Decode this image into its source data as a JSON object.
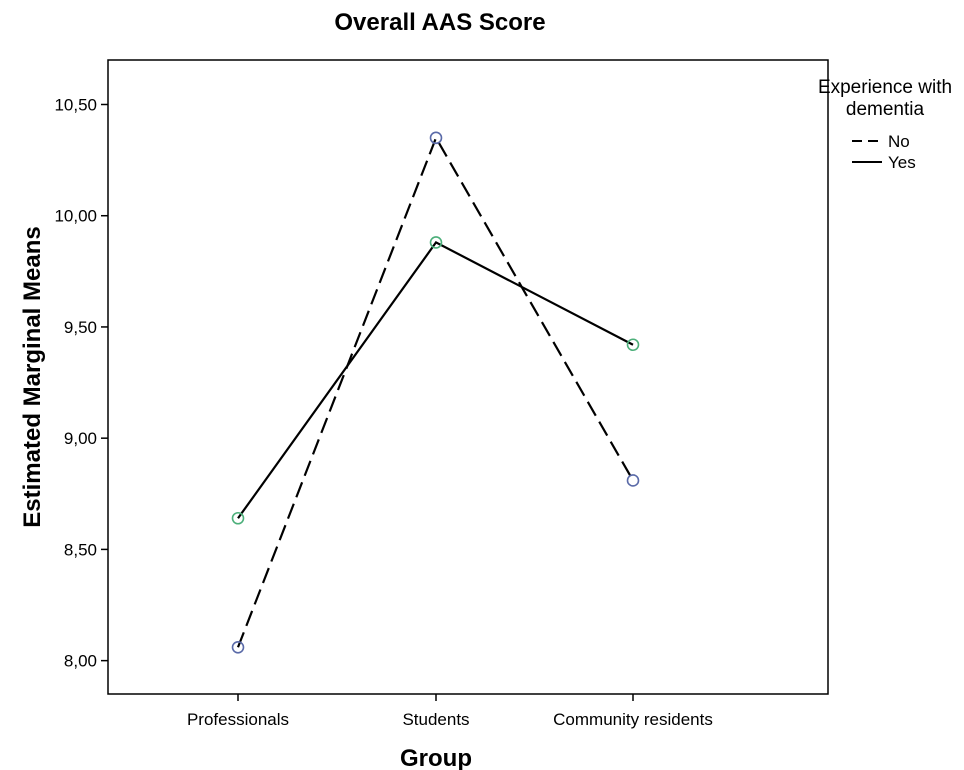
{
  "chart_data": {
    "type": "line",
    "title": "Overall AAS Score",
    "xlabel": "Group",
    "ylabel": "Estimated Marginal Means",
    "categories": [
      "Professionals",
      "Students",
      "Community residents"
    ],
    "ylim": [
      7.85,
      10.7
    ],
    "yticks": [
      8.0,
      8.5,
      9.0,
      9.5,
      10.0,
      10.5
    ],
    "ytick_labels": [
      "8,00",
      "8,50",
      "9,00",
      "9,50",
      "10,00",
      "10,50"
    ],
    "grid": false,
    "legend": {
      "title_lines": [
        "Experience with",
        "dementia"
      ],
      "placement": "top-right outside"
    },
    "series": [
      {
        "name": "No",
        "values": [
          8.06,
          10.35,
          8.81
        ],
        "line_style": "dashed",
        "marker_color": "#5a6aa8"
      },
      {
        "name": "Yes",
        "values": [
          8.64,
          9.88,
          9.42
        ],
        "line_style": "solid",
        "marker_color": "#4caf7a"
      }
    ]
  }
}
